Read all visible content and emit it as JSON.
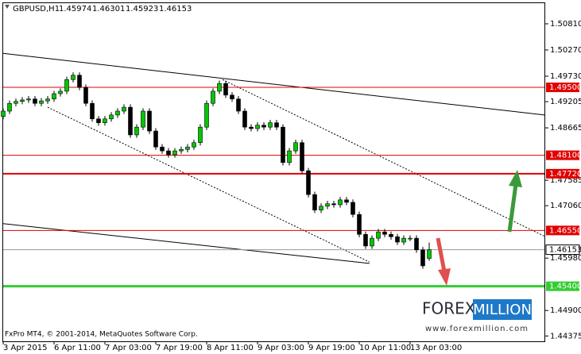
{
  "chart_data": {
    "type": "candlestick",
    "title": "GBPUSD,H1",
    "copyright": "FxPro MT4, © 2001-2014, MetaQuotes Software Corp.",
    "logo": {
      "left": "FOREX",
      "right": "MILLION",
      "url": "www.forexmillion.com"
    },
    "x": [
      0,
      1,
      2,
      3,
      4,
      5,
      6,
      7,
      8,
      9,
      10,
      11,
      12,
      13,
      14,
      15,
      16,
      17,
      18,
      19,
      20,
      21,
      22,
      23,
      24,
      25,
      26,
      27,
      28,
      29,
      30,
      31,
      32,
      33,
      34,
      35,
      36,
      37,
      38,
      39,
      40,
      41,
      42,
      43,
      44,
      45,
      46,
      47,
      48,
      49,
      50,
      51,
      52,
      53,
      54,
      55,
      56,
      57,
      58,
      59,
      60,
      61,
      62,
      63,
      64,
      65,
      66,
      67
    ],
    "open": [
      1.489,
      1.4901,
      1.4917,
      1.4921,
      1.4924,
      1.4926,
      1.4917,
      1.4922,
      1.4926,
      1.4937,
      1.4942,
      1.4966,
      1.4975,
      1.495,
      1.4917,
      1.4885,
      1.4877,
      1.4885,
      1.4893,
      1.4901,
      1.4909,
      1.4852,
      1.4868,
      1.4901,
      1.486,
      1.4827,
      1.4819,
      1.4811,
      1.4819,
      1.4822,
      1.4827,
      1.4836,
      1.4868,
      1.4917,
      1.4942,
      1.4958,
      1.4934,
      1.4926,
      1.4901,
      1.4868,
      1.4865,
      1.4872,
      1.4868,
      1.4877,
      1.4868,
      1.4795,
      1.4819,
      1.4836,
      1.4778,
      1.4729,
      1.4697,
      1.4705,
      1.471,
      1.4708,
      1.4718,
      1.4713,
      1.4688,
      1.4647,
      1.4623,
      1.4639,
      1.4652,
      1.4647,
      1.4642,
      1.4631,
      1.4639,
      1.4639,
      1.4615,
      1.45974
    ],
    "high": [
      1.4907,
      1.4923,
      1.4927,
      1.493,
      1.4932,
      1.4932,
      1.4928,
      1.4932,
      1.4943,
      1.4948,
      1.4972,
      1.4981,
      1.4981,
      1.4956,
      1.4923,
      1.4891,
      1.4891,
      1.4899,
      1.4907,
      1.4915,
      1.4915,
      1.4874,
      1.4907,
      1.4907,
      1.4866,
      1.4833,
      1.4825,
      1.4825,
      1.4828,
      1.4833,
      1.4842,
      1.4874,
      1.4923,
      1.4948,
      1.4964,
      1.4964,
      1.494,
      1.4932,
      1.4907,
      1.4874,
      1.4878,
      1.4878,
      1.4883,
      1.4883,
      1.4874,
      1.4825,
      1.4842,
      1.4842,
      1.4784,
      1.4735,
      1.4711,
      1.4716,
      1.4716,
      1.4724,
      1.4724,
      1.4719,
      1.4694,
      1.4653,
      1.4645,
      1.4658,
      1.4658,
      1.4653,
      1.4648,
      1.4645,
      1.4645,
      1.4645,
      1.4621,
      1.46301
    ],
    "low": [
      1.4884,
      1.4895,
      1.4911,
      1.4915,
      1.4918,
      1.4911,
      1.4911,
      1.4916,
      1.492,
      1.4931,
      1.4936,
      1.496,
      1.4944,
      1.4911,
      1.4879,
      1.4871,
      1.4871,
      1.4879,
      1.4887,
      1.4895,
      1.4846,
      1.4846,
      1.4862,
      1.4854,
      1.4821,
      1.4813,
      1.4805,
      1.4805,
      1.4813,
      1.4816,
      1.4821,
      1.483,
      1.4862,
      1.4911,
      1.4936,
      1.4928,
      1.492,
      1.4895,
      1.4862,
      1.4859,
      1.4859,
      1.4862,
      1.4862,
      1.4862,
      1.4789,
      1.4789,
      1.4813,
      1.4772,
      1.4723,
      1.4691,
      1.4691,
      1.4699,
      1.4702,
      1.4702,
      1.4707,
      1.4682,
      1.4641,
      1.4617,
      1.4617,
      1.4633,
      1.4641,
      1.4636,
      1.4625,
      1.4625,
      1.4633,
      1.4609,
      1.4576,
      1.45923
    ],
    "close": [
      1.4901,
      1.4917,
      1.4921,
      1.4924,
      1.4926,
      1.4917,
      1.4922,
      1.4926,
      1.4937,
      1.4942,
      1.4966,
      1.4975,
      1.495,
      1.4917,
      1.4885,
      1.4877,
      1.4885,
      1.4893,
      1.4901,
      1.4909,
      1.4852,
      1.4868,
      1.4901,
      1.486,
      1.4827,
      1.4819,
      1.4811,
      1.4819,
      1.4822,
      1.4827,
      1.4836,
      1.4868,
      1.4917,
      1.4942,
      1.4958,
      1.4934,
      1.4926,
      1.4901,
      1.4868,
      1.4865,
      1.4872,
      1.4868,
      1.4877,
      1.4868,
      1.4795,
      1.4819,
      1.4836,
      1.4778,
      1.4729,
      1.4697,
      1.4705,
      1.471,
      1.4708,
      1.4718,
      1.4713,
      1.4688,
      1.4647,
      1.4623,
      1.4639,
      1.4652,
      1.4647,
      1.4642,
      1.4631,
      1.4639,
      1.4639,
      1.4615,
      1.4582,
      1.46153
    ],
    "up_color": "#00c800",
    "down_color": "#000000",
    "xlim": [
      0,
      85.125
    ],
    "xticks": [
      {
        "value": 0,
        "label": "3 Apr 2015"
      },
      {
        "value": 8,
        "label": "6 Apr 11:00"
      },
      {
        "value": 16,
        "label": "7 Apr 03:00"
      },
      {
        "value": 24,
        "label": "7 Apr 19:00"
      },
      {
        "value": 32,
        "label": "8 Apr 11:00"
      },
      {
        "value": 40,
        "label": "9 Apr 03:00"
      },
      {
        "value": 48,
        "label": "9 Apr 19:00"
      },
      {
        "value": 56,
        "label": "10 Apr 11:00"
      },
      {
        "value": 64,
        "label": "13 Apr 03:00"
      }
    ],
    "ylim": [
      1.44265,
      1.51235
    ],
    "yticks": [
      {
        "value": 1.5081,
        "label": "1.50810"
      },
      {
        "value": 1.5027,
        "label": "1.50270"
      },
      {
        "value": 1.4973,
        "label": "1.49730"
      },
      1.49205,
      1.48665,
      1.47585,
      {
        "value": 1.4706,
        "label": "1.47060"
      },
      {
        "value": 1.4598,
        "label": "1.45980"
      },
      {
        "value": 1.449,
        "label": "1.44900"
      },
      1.44375
    ],
    "levels": [
      {
        "value": 1.495,
        "label": "1.49500",
        "color": "#e00000",
        "width": 1
      },
      {
        "value": 1.481,
        "label": "1.48100",
        "color": "#e00000",
        "width": 1
      },
      {
        "value": 1.4772,
        "label": "1.47720",
        "color": "#e00000",
        "width": 2
      },
      {
        "value": 1.4655,
        "label": "1.46550",
        "color": "#e00000",
        "width": 1
      },
      {
        "value": 1.454,
        "label": "1.45400",
        "color": "#33cc33",
        "width": 3
      }
    ],
    "current_price": 1.46153,
    "trendlines": [
      {
        "x": [
          0,
          85.125
        ],
        "y": [
          1.502,
          1.4893
        ],
        "style": "solid"
      },
      {
        "x": [
          0,
          57.6
        ],
        "y": [
          1.4669,
          1.4587
        ],
        "style": "solid"
      },
      {
        "x": [
          7,
          57.6
        ],
        "y": [
          1.4909,
          1.459
        ],
        "style": "dotted"
      },
      {
        "x": [
          34.5,
          85.125
        ],
        "y": [
          1.4966,
          1.4643
        ],
        "style": "dotted"
      }
    ]
  }
}
